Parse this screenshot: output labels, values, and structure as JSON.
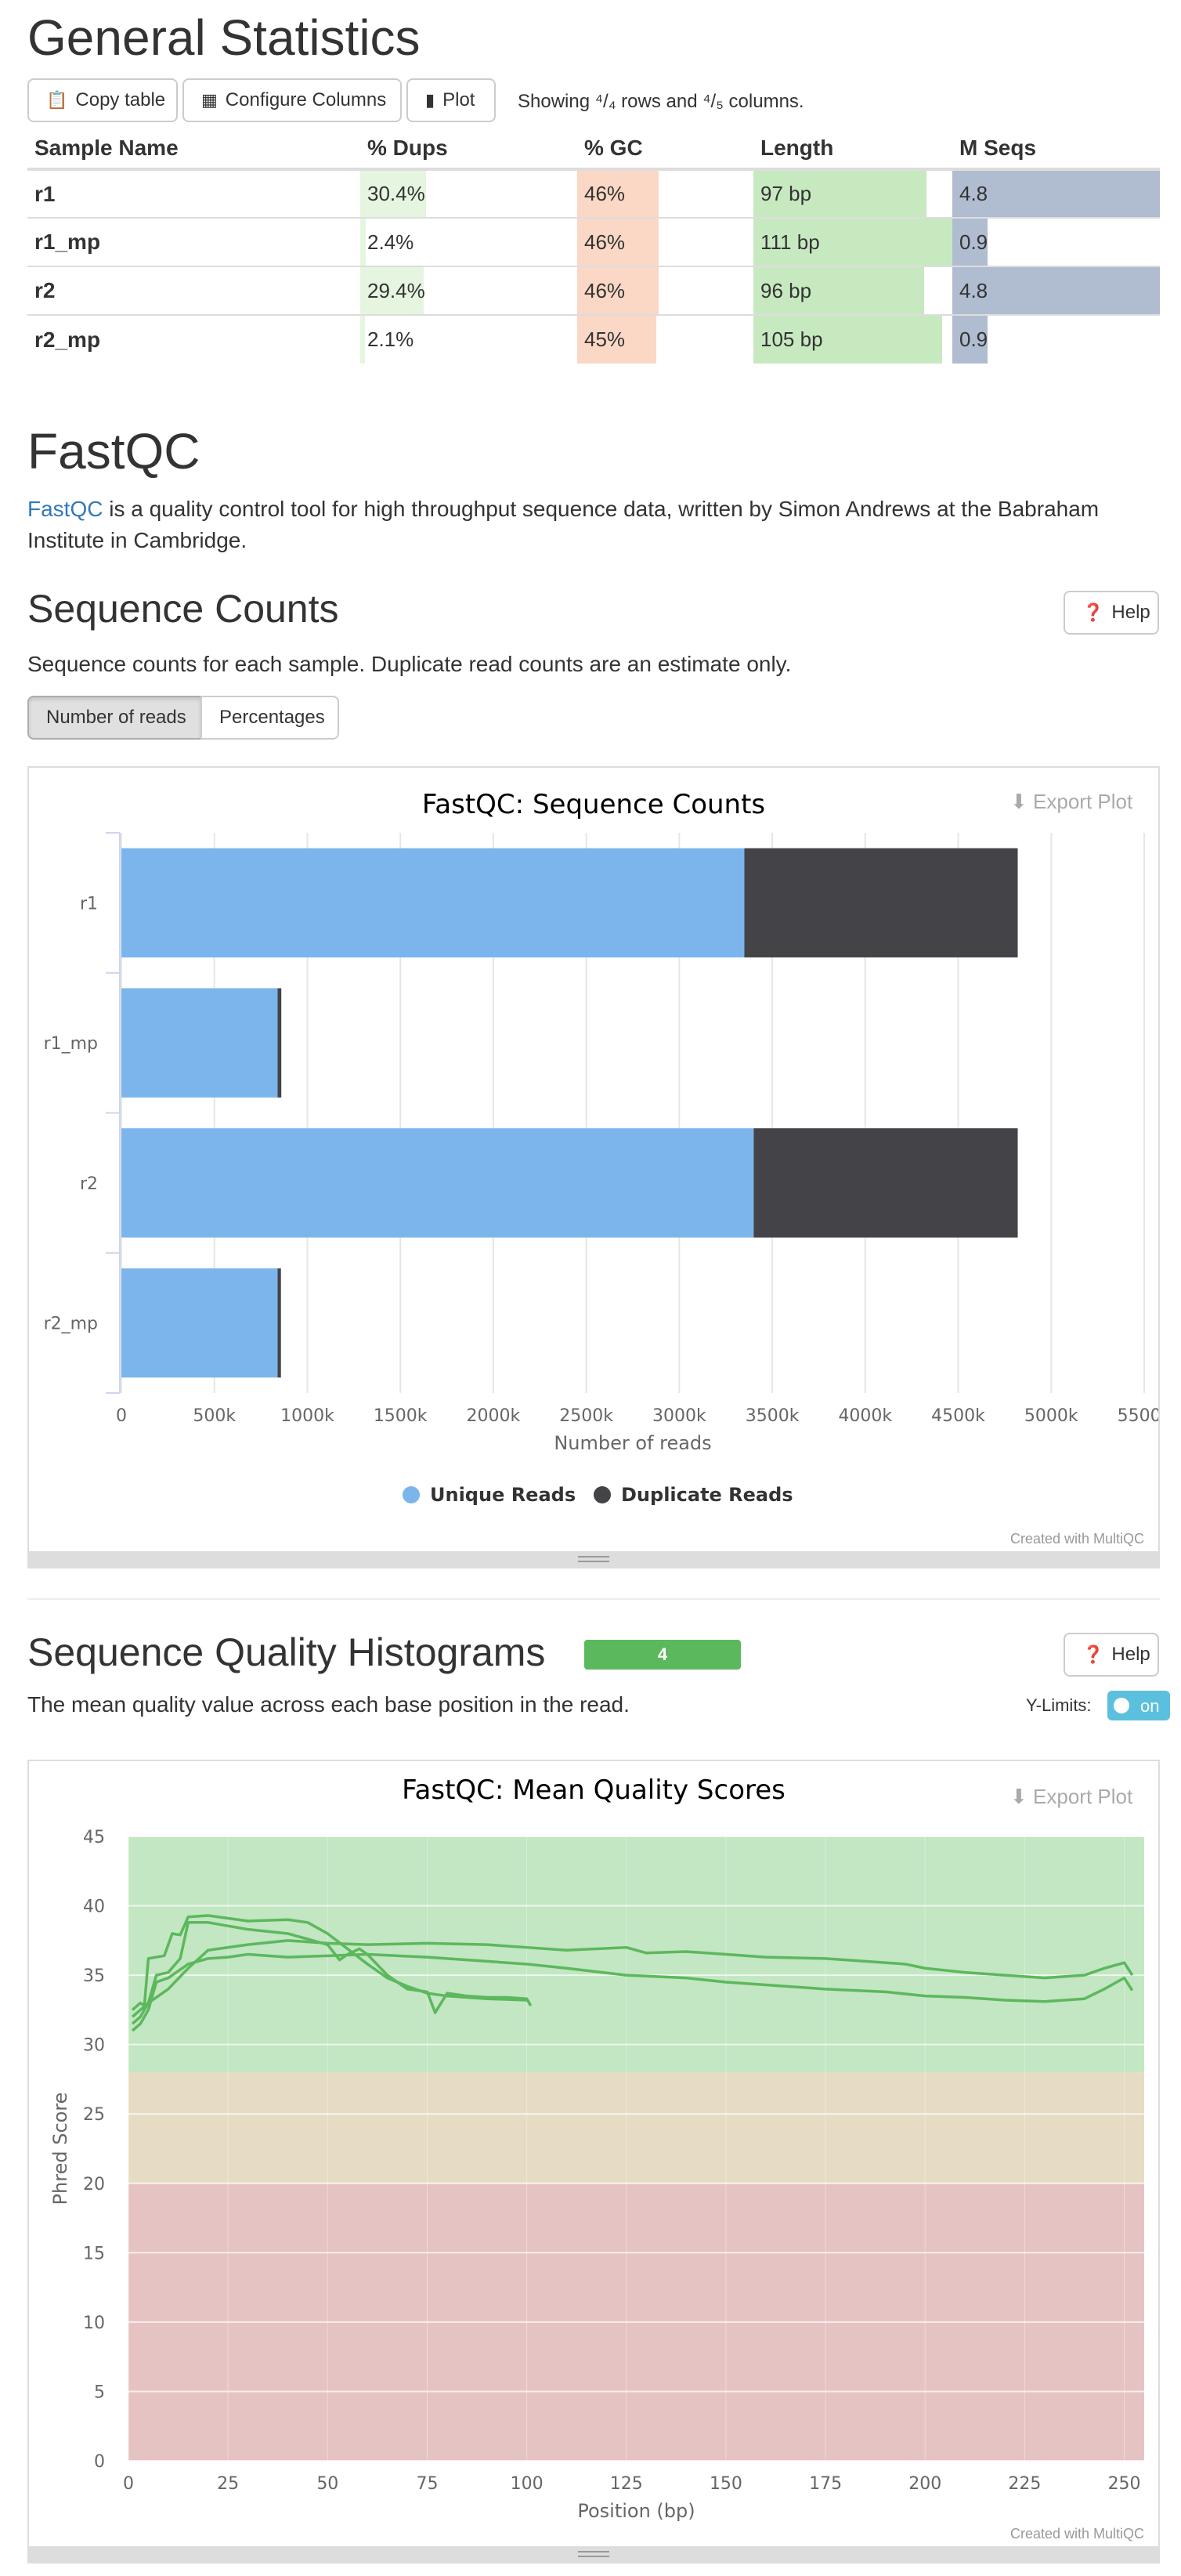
{
  "general_stats": {
    "title": "General Statistics",
    "buttons": {
      "copy": "Copy table",
      "configure": "Configure Columns",
      "plot": "Plot"
    },
    "showing_text": "Showing ⁴/₄ rows and ⁴/₅ columns.",
    "columns": [
      "Sample Name",
      "% Dups",
      "% GC",
      "Length",
      "M Seqs"
    ],
    "rows": [
      {
        "name": "r1",
        "dups": "30.4%",
        "dups_frac": 0.304,
        "gc": "46%",
        "gc_frac": 0.46,
        "length": "97 bp",
        "length_frac": 0.87,
        "mseqs": "4.8",
        "mseqs_frac": 1.0
      },
      {
        "name": "r1_mp",
        "dups": "2.4%",
        "dups_frac": 0.024,
        "gc": "46%",
        "gc_frac": 0.46,
        "length": "111 bp",
        "length_frac": 1.0,
        "mseqs": "0.9",
        "mseqs_frac": 0.17
      },
      {
        "name": "r2",
        "dups": "29.4%",
        "dups_frac": 0.294,
        "gc": "46%",
        "gc_frac": 0.46,
        "length": "96 bp",
        "length_frac": 0.86,
        "mseqs": "4.8",
        "mseqs_frac": 1.0
      },
      {
        "name": "r2_mp",
        "dups": "2.1%",
        "dups_frac": 0.021,
        "gc": "45%",
        "gc_frac": 0.45,
        "length": "105 bp",
        "length_frac": 0.95,
        "mseqs": "0.9",
        "mseqs_frac": 0.17
      }
    ],
    "colors": {
      "dups": "#e5f5e0",
      "gc": "#fbd7c6",
      "length": "#c7e9c0",
      "mseqs": "#b0bccf"
    }
  },
  "fastqc": {
    "title": "FastQC",
    "intro_link": "FastQC",
    "intro_text": " is a quality control tool for high throughput sequence data, written by Simon Andrews at the Babraham Institute in Cambridge."
  },
  "seq_counts": {
    "title": "Sequence Counts",
    "help": "Help",
    "description": "Sequence counts for each sample. Duplicate read counts are an estimate only.",
    "toggle_reads": "Number of reads",
    "toggle_pct": "Percentages",
    "export": "Export Plot",
    "credit": "Created with MultiQC"
  },
  "seq_quality": {
    "title": "Sequence Quality Histograms",
    "badge": "4",
    "help": "Help",
    "description": "The mean quality value across each base position in the read.",
    "ylimits_label": "Y-Limits:",
    "toggle_label": "on",
    "export": "Export Plot",
    "credit": "Created with MultiQC"
  },
  "chart_data": [
    {
      "type": "bar",
      "orientation": "horizontal",
      "stacked": true,
      "title": "FastQC: Sequence Counts",
      "xlabel": "Number of reads",
      "ylabel": "",
      "categories": [
        "r1",
        "r1_mp",
        "r2",
        "r2_mp"
      ],
      "series": [
        {
          "name": "Unique Reads",
          "color": "#7cb5ec",
          "values": [
            3350000,
            840000,
            3400000,
            840000
          ]
        },
        {
          "name": "Duplicate Reads",
          "color": "#434348",
          "values": [
            1470000,
            20000,
            1420000,
            18000
          ]
        }
      ],
      "xlim": [
        0,
        5500000
      ],
      "xticks": [
        "0",
        "500k",
        "1000k",
        "1500k",
        "2000k",
        "2500k",
        "3000k",
        "3500k",
        "4000k",
        "4500k",
        "5000k",
        "5500k"
      ],
      "legend_position": "bottom-center",
      "grid": true
    },
    {
      "type": "line",
      "title": "FastQC: Mean Quality Scores",
      "xlabel": "Position (bp)",
      "ylabel": "Phred Score",
      "xlim": [
        0,
        255
      ],
      "ylim": [
        0,
        45
      ],
      "xticks": [
        "0",
        "25",
        "50",
        "75",
        "100",
        "125",
        "150",
        "175",
        "200",
        "225",
        "250"
      ],
      "yticks": [
        "0",
        "5",
        "10",
        "15",
        "20",
        "25",
        "30",
        "35",
        "40",
        "45"
      ],
      "bands": [
        {
          "from": 28,
          "to": 45,
          "color": "#c3e6c3"
        },
        {
          "from": 20,
          "to": 28,
          "color": "#e6dcc3"
        },
        {
          "from": 0,
          "to": 20,
          "color": "#e6c3c3"
        }
      ],
      "line_color": "#5cb85c",
      "grid": true,
      "series": [
        {
          "x": [
            1,
            3,
            4,
            5,
            7,
            9,
            11,
            13,
            15,
            20,
            25,
            30,
            40,
            45,
            50,
            55,
            60,
            65,
            70,
            75,
            80,
            90,
            100
          ],
          "y": [
            32.5,
            33.0,
            32.8,
            36.2,
            36.3,
            36.4,
            38.0,
            37.9,
            39.2,
            39.3,
            39.1,
            38.9,
            39.0,
            38.8,
            38.0,
            36.9,
            35.8,
            34.8,
            34.2,
            33.7,
            33.5,
            33.3,
            33.2
          ]
        },
        {
          "x": [
            1,
            3,
            5,
            7,
            10,
            13,
            15,
            20,
            30,
            40,
            50,
            53,
            55,
            58,
            60,
            65,
            70,
            75,
            77,
            80,
            85,
            90,
            95,
            100,
            101
          ],
          "y": [
            31.5,
            32.0,
            33.0,
            35.0,
            35.2,
            36.2,
            38.8,
            38.8,
            38.3,
            38.0,
            37.2,
            36.1,
            36.5,
            36.9,
            36.5,
            35.0,
            34.0,
            33.8,
            32.3,
            33.7,
            33.5,
            33.4,
            33.4,
            33.3,
            32.8
          ]
        },
        {
          "x": [
            1,
            3,
            5,
            7,
            10,
            15,
            20,
            25,
            30,
            40,
            50,
            60,
            75,
            90,
            100,
            110,
            125,
            140,
            150,
            160,
            175,
            190,
            200,
            210,
            220,
            230,
            240,
            245,
            250,
            252
          ],
          "y": [
            31.0,
            31.5,
            32.5,
            34.5,
            34.8,
            35.8,
            36.2,
            36.3,
            36.5,
            36.3,
            36.4,
            36.5,
            36.3,
            36.0,
            35.8,
            35.5,
            35.0,
            34.8,
            34.5,
            34.3,
            34.0,
            33.8,
            33.5,
            33.4,
            33.2,
            33.1,
            33.3,
            34.0,
            34.8,
            33.9
          ]
        },
        {
          "x": [
            1,
            3,
            5,
            10,
            15,
            20,
            30,
            40,
            50,
            60,
            75,
            90,
            100,
            110,
            125,
            130,
            140,
            150,
            160,
            175,
            185,
            195,
            200,
            210,
            220,
            230,
            240,
            245,
            250,
            252
          ],
          "y": [
            32.0,
            32.5,
            33.0,
            34.0,
            35.5,
            36.8,
            37.2,
            37.5,
            37.3,
            37.2,
            37.3,
            37.2,
            37.0,
            36.8,
            37.0,
            36.6,
            36.7,
            36.5,
            36.3,
            36.2,
            36.0,
            35.8,
            35.5,
            35.2,
            35.0,
            34.8,
            35.0,
            35.5,
            35.9,
            35.0
          ]
        }
      ]
    }
  ]
}
